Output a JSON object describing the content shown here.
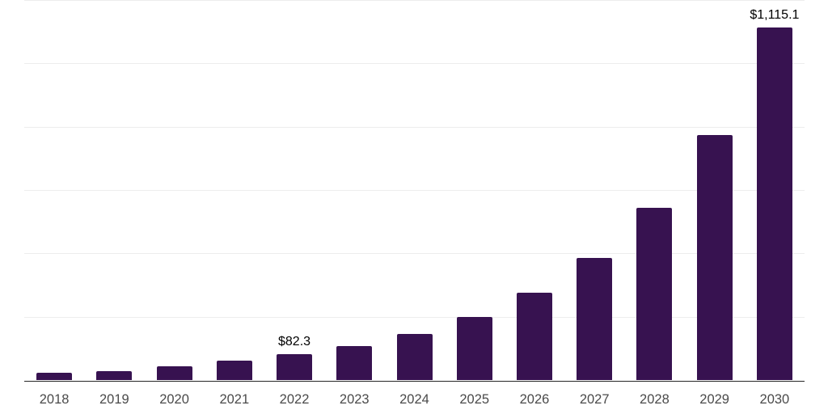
{
  "chart_data": {
    "type": "bar",
    "title": "",
    "xlabel": "",
    "ylabel": "",
    "categories": [
      "2018",
      "2019",
      "2020",
      "2021",
      "2022",
      "2023",
      "2024",
      "2025",
      "2026",
      "2027",
      "2028",
      "2029",
      "2030"
    ],
    "values": [
      24.5,
      30.2,
      45.5,
      62,
      82.3,
      109.6,
      147,
      200,
      278,
      387,
      545,
      775,
      1115.1
    ],
    "data_labels": {
      "2022": "$82.3",
      "2030": "$1,115.1"
    },
    "ylim": [
      0,
      1200
    ],
    "gridline_step": 200,
    "grid": "horizontal",
    "legend_position": "none",
    "colors": {
      "bar": "#371250",
      "gridline": "#EDEDED",
      "axis_line": "#262626",
      "tick_label": "#4A4A4A",
      "data_label": "#000000",
      "background": "#FFFFFF"
    }
  }
}
